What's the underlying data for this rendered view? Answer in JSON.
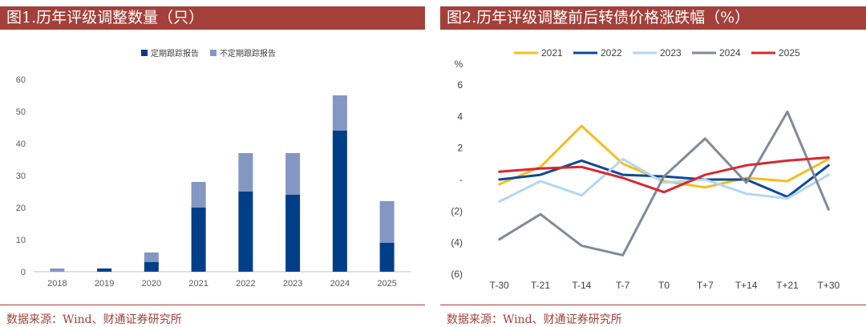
{
  "chart_data": [
    {
      "type": "bar",
      "stacked": true,
      "title": "图1.历年评级调整数量（只）",
      "categories": [
        "2018",
        "2019",
        "2020",
        "2021",
        "2022",
        "2023",
        "2024",
        "2025"
      ],
      "series": [
        {
          "name": "定期跟踪报告",
          "color": "#003f88",
          "values": [
            0,
            1,
            3,
            20,
            25,
            24,
            44,
            9
          ]
        },
        {
          "name": "不定期跟踪报告",
          "color": "#8497c2",
          "values": [
            1,
            0,
            3,
            8,
            12,
            13,
            11,
            13
          ]
        }
      ],
      "ylim": [
        0,
        60
      ],
      "yticks": [
        0,
        10,
        20,
        30,
        40,
        50,
        60
      ],
      "xlabel": "",
      "ylabel": "",
      "legend_position": "top-center",
      "source": "数据来源：Wind、财通证券研究所"
    },
    {
      "type": "line",
      "title": "图2.历年评级调整前后转债价格涨跌幅（%）",
      "unit_label": "%",
      "categories": [
        "T-30",
        "T-21",
        "T-14",
        "T-7",
        "T0",
        "T+7",
        "T+14",
        "T+21",
        "T+30"
      ],
      "series": [
        {
          "name": "2021",
          "color": "#f5bd1f",
          "values": [
            -0.3,
            0.8,
            3.4,
            1.0,
            -0.1,
            -0.5,
            0.1,
            -0.1,
            1.3
          ]
        },
        {
          "name": "2022",
          "color": "#0b4a99",
          "values": [
            0.0,
            0.3,
            1.2,
            0.3,
            0.2,
            0.0,
            0.0,
            -1.1,
            0.9
          ]
        },
        {
          "name": "2023",
          "color": "#b4d6f2",
          "values": [
            -1.4,
            -0.1,
            -1.0,
            1.3,
            -0.2,
            0.0,
            -0.9,
            -1.2,
            0.3
          ]
        },
        {
          "name": "2024",
          "color": "#7f8a99",
          "values": [
            -3.8,
            -2.2,
            -4.2,
            -4.8,
            0.2,
            2.6,
            -0.2,
            4.3,
            -1.9
          ]
        },
        {
          "name": "2025",
          "color": "#d7282f",
          "values": [
            0.5,
            0.7,
            0.8,
            0.1,
            -0.8,
            0.3,
            0.9,
            1.2,
            1.4
          ]
        }
      ],
      "ylim": [
        -6,
        6
      ],
      "yticks": [
        6,
        4,
        2,
        0,
        -2,
        -4,
        -6
      ],
      "ytick_labels": [
        "6",
        "4",
        "2",
        "-",
        "(2)",
        "(4)",
        "(6)"
      ],
      "xlabel": "",
      "ylabel": "%",
      "legend_position": "top-center",
      "source": "数据来源：Wind、财通证券研究所"
    }
  ]
}
